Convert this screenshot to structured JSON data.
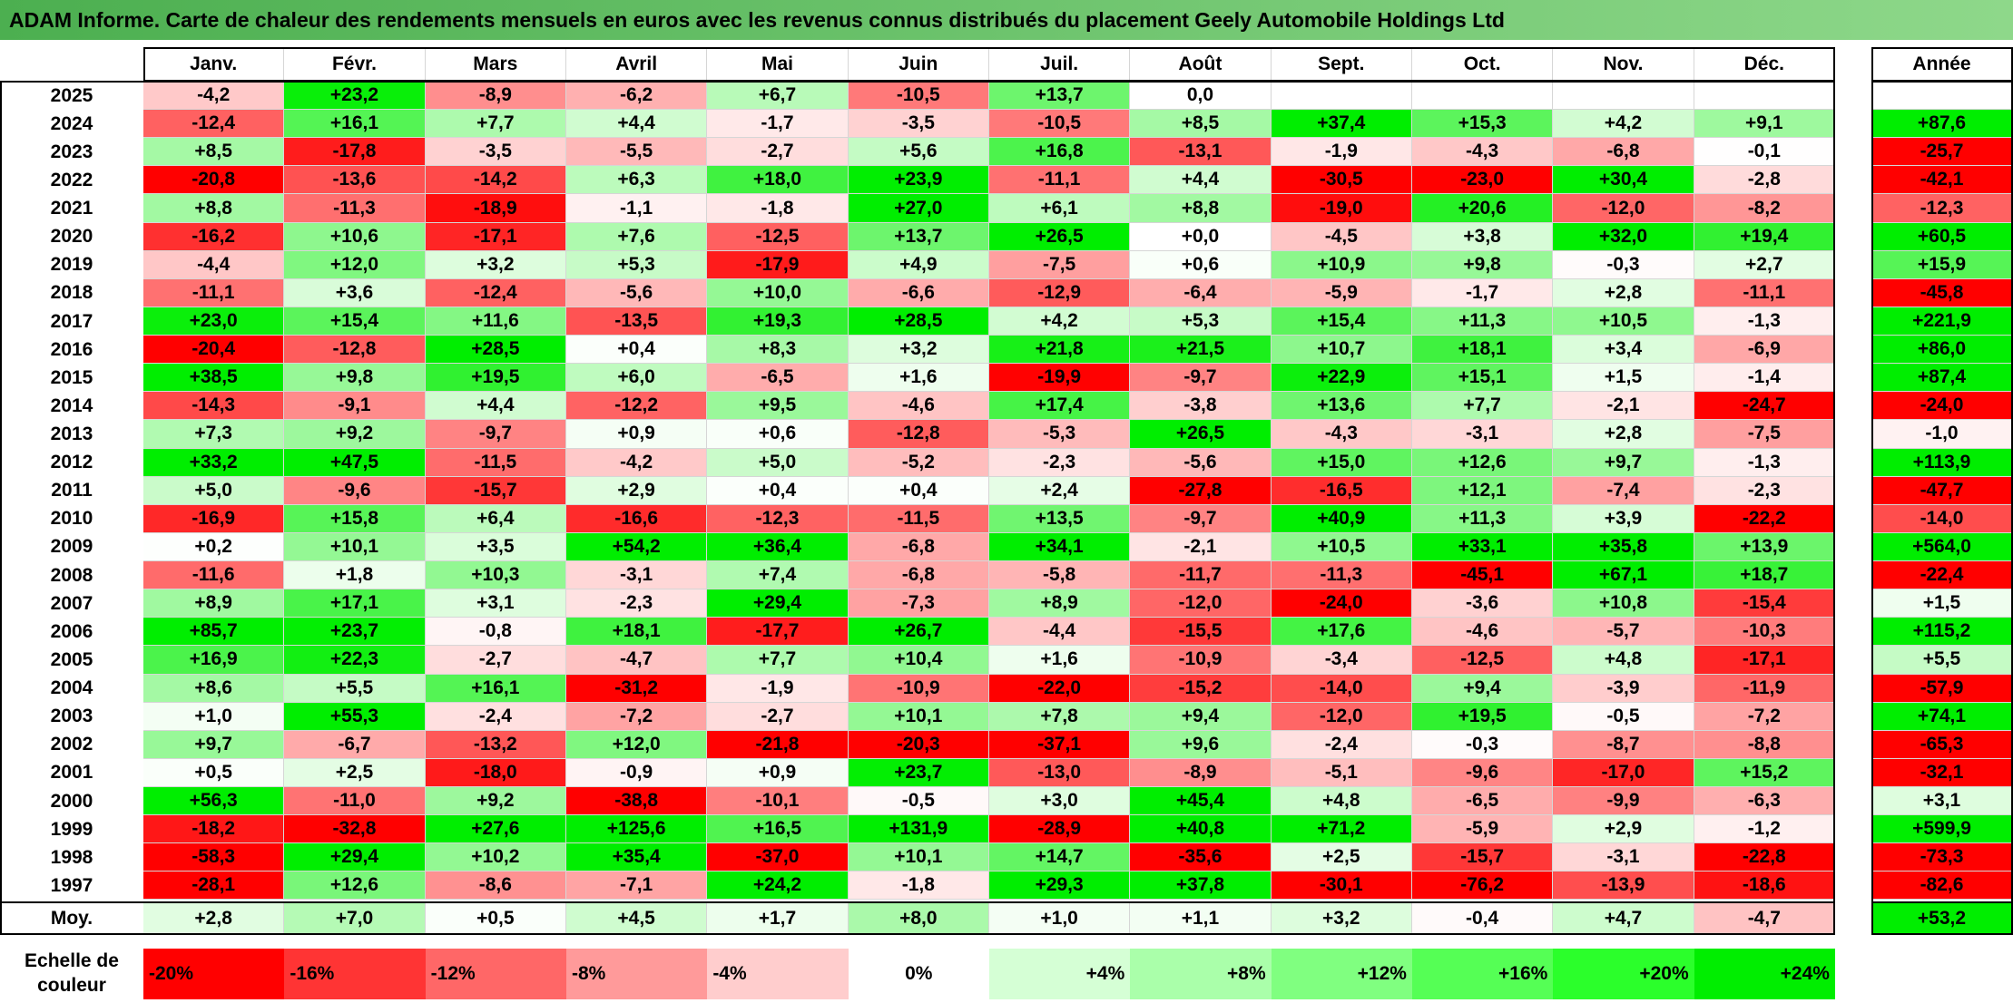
{
  "title": "ADAM Informe. Carte de chaleur des rendements mensuels en euros avec les revenus connus distribués du placement Geely Automobile Holdings Ltd",
  "chart_data": {
    "type": "heatmap",
    "title": "ADAM Informe. Carte de chaleur des rendements mensuels en euros avec les revenus connus distribués du placement Geely Automobile Holdings Ltd",
    "months": [
      "Janv.",
      "Févr.",
      "Mars",
      "Avril",
      "Mai",
      "Juin",
      "Juil.",
      "Août",
      "Sept.",
      "Oct.",
      "Nov.",
      "Déc."
    ],
    "year_column_label": "Année",
    "rows": [
      {
        "year": "2025",
        "values": [
          "-4,2",
          "+23,2",
          "-8,9",
          "-6,2",
          "+6,7",
          "-10,5",
          "+13,7",
          "0,0",
          "",
          "",
          "",
          ""
        ],
        "annual": ""
      },
      {
        "year": "2024",
        "values": [
          "-12,4",
          "+16,1",
          "+7,7",
          "+4,4",
          "-1,7",
          "-3,5",
          "-10,5",
          "+8,5",
          "+37,4",
          "+15,3",
          "+4,2",
          "+9,1"
        ],
        "annual": "+87,6"
      },
      {
        "year": "2023",
        "values": [
          "+8,5",
          "-17,8",
          "-3,5",
          "-5,5",
          "-2,7",
          "+5,6",
          "+16,8",
          "-13,1",
          "-1,9",
          "-4,3",
          "-6,8",
          "-0,1"
        ],
        "annual": "-25,7"
      },
      {
        "year": "2022",
        "values": [
          "-20,8",
          "-13,6",
          "-14,2",
          "+6,3",
          "+18,0",
          "+23,9",
          "-11,1",
          "+4,4",
          "-30,5",
          "-23,0",
          "+30,4",
          "-2,8"
        ],
        "annual": "-42,1"
      },
      {
        "year": "2021",
        "values": [
          "+8,8",
          "-11,3",
          "-18,9",
          "-1,1",
          "-1,8",
          "+27,0",
          "+6,1",
          "+8,8",
          "-19,0",
          "+20,6",
          "-12,0",
          "-8,2"
        ],
        "annual": "-12,3"
      },
      {
        "year": "2020",
        "values": [
          "-16,2",
          "+10,6",
          "-17,1",
          "+7,6",
          "-12,5",
          "+13,7",
          "+26,5",
          "+0,0",
          "-4,5",
          "+3,8",
          "+32,0",
          "+19,4"
        ],
        "annual": "+60,5"
      },
      {
        "year": "2019",
        "values": [
          "-4,4",
          "+12,0",
          "+3,2",
          "+5,3",
          "-17,9",
          "+4,9",
          "-7,5",
          "+0,6",
          "+10,9",
          "+9,8",
          "-0,3",
          "+2,7"
        ],
        "annual": "+15,9"
      },
      {
        "year": "2018",
        "values": [
          "-11,1",
          "+3,6",
          "-12,4",
          "-5,6",
          "+10,0",
          "-6,6",
          "-12,9",
          "-6,4",
          "-5,9",
          "-1,7",
          "+2,8",
          "-11,1"
        ],
        "annual": "-45,8"
      },
      {
        "year": "2017",
        "values": [
          "+23,0",
          "+15,4",
          "+11,6",
          "-13,5",
          "+19,3",
          "+28,5",
          "+4,2",
          "+5,3",
          "+15,4",
          "+11,3",
          "+10,5",
          "-1,3"
        ],
        "annual": "+221,9"
      },
      {
        "year": "2016",
        "values": [
          "-20,4",
          "-12,8",
          "+28,5",
          "+0,4",
          "+8,3",
          "+3,2",
          "+21,8",
          "+21,5",
          "+10,7",
          "+18,1",
          "+3,4",
          "-6,9"
        ],
        "annual": "+86,0"
      },
      {
        "year": "2015",
        "values": [
          "+38,5",
          "+9,8",
          "+19,5",
          "+6,0",
          "-6,5",
          "+1,6",
          "-19,9",
          "-9,7",
          "+22,9",
          "+15,1",
          "+1,5",
          "-1,4"
        ],
        "annual": "+87,4"
      },
      {
        "year": "2014",
        "values": [
          "-14,3",
          "-9,1",
          "+4,4",
          "-12,2",
          "+9,5",
          "-4,6",
          "+17,4",
          "-3,8",
          "+13,6",
          "+7,7",
          "-2,1",
          "-24,7"
        ],
        "annual": "-24,0"
      },
      {
        "year": "2013",
        "values": [
          "+7,3",
          "+9,2",
          "-9,7",
          "+0,9",
          "+0,6",
          "-12,8",
          "-5,3",
          "+26,5",
          "-4,3",
          "-3,1",
          "+2,8",
          "-7,5"
        ],
        "annual": "-1,0"
      },
      {
        "year": "2012",
        "values": [
          "+33,2",
          "+47,5",
          "-11,5",
          "-4,2",
          "+5,0",
          "-5,2",
          "-2,3",
          "-5,6",
          "+15,0",
          "+12,6",
          "+9,7",
          "-1,3"
        ],
        "annual": "+113,9"
      },
      {
        "year": "2011",
        "values": [
          "+5,0",
          "-9,6",
          "-15,7",
          "+2,9",
          "+0,4",
          "+0,4",
          "+2,4",
          "-27,8",
          "-16,5",
          "+12,1",
          "-7,4",
          "-2,3"
        ],
        "annual": "-47,7"
      },
      {
        "year": "2010",
        "values": [
          "-16,9",
          "+15,8",
          "+6,4",
          "-16,6",
          "-12,3",
          "-11,5",
          "+13,5",
          "-9,7",
          "+40,9",
          "+11,3",
          "+3,9",
          "-22,2"
        ],
        "annual": "-14,0"
      },
      {
        "year": "2009",
        "values": [
          "+0,2",
          "+10,1",
          "+3,5",
          "+54,2",
          "+36,4",
          "-6,8",
          "+34,1",
          "-2,1",
          "+10,5",
          "+33,1",
          "+35,8",
          "+13,9"
        ],
        "annual": "+564,0"
      },
      {
        "year": "2008",
        "values": [
          "-11,6",
          "+1,8",
          "+10,3",
          "-3,1",
          "+7,4",
          "-6,8",
          "-5,8",
          "-11,7",
          "-11,3",
          "-45,1",
          "+67,1",
          "+18,7"
        ],
        "annual": "-22,4"
      },
      {
        "year": "2007",
        "values": [
          "+8,9",
          "+17,1",
          "+3,1",
          "-2,3",
          "+29,4",
          "-7,3",
          "+8,9",
          "-12,0",
          "-24,0",
          "-3,6",
          "+10,8",
          "-15,4"
        ],
        "annual": "+1,5"
      },
      {
        "year": "2006",
        "values": [
          "+85,7",
          "+23,7",
          "-0,8",
          "+18,1",
          "-17,7",
          "+26,7",
          "-4,4",
          "-15,5",
          "+17,6",
          "-4,6",
          "-5,7",
          "-10,3"
        ],
        "annual": "+115,2"
      },
      {
        "year": "2005",
        "values": [
          "+16,9",
          "+22,3",
          "-2,7",
          "-4,7",
          "+7,7",
          "+10,4",
          "+1,6",
          "-10,9",
          "-3,4",
          "-12,5",
          "+4,8",
          "-17,1"
        ],
        "annual": "+5,5"
      },
      {
        "year": "2004",
        "values": [
          "+8,6",
          "+5,5",
          "+16,1",
          "-31,2",
          "-1,9",
          "-10,9",
          "-22,0",
          "-15,2",
          "-14,0",
          "+9,4",
          "-3,9",
          "-11,9"
        ],
        "annual": "-57,9"
      },
      {
        "year": "2003",
        "values": [
          "+1,0",
          "+55,3",
          "-2,4",
          "-7,2",
          "-2,7",
          "+10,1",
          "+7,8",
          "+9,4",
          "-12,0",
          "+19,5",
          "-0,5",
          "-7,2"
        ],
        "annual": "+74,1"
      },
      {
        "year": "2002",
        "values": [
          "+9,7",
          "-6,7",
          "-13,2",
          "+12,0",
          "-21,8",
          "-20,3",
          "-37,1",
          "+9,6",
          "-2,4",
          "-0,3",
          "-8,7",
          "-8,8"
        ],
        "annual": "-65,3"
      },
      {
        "year": "2001",
        "values": [
          "+0,5",
          "+2,5",
          "-18,0",
          "-0,9",
          "+0,9",
          "+23,7",
          "-13,0",
          "-8,9",
          "-5,1",
          "-9,6",
          "-17,0",
          "+15,2"
        ],
        "annual": "-32,1"
      },
      {
        "year": "2000",
        "values": [
          "+56,3",
          "-11,0",
          "+9,2",
          "-38,8",
          "-10,1",
          "-0,5",
          "+3,0",
          "+45,4",
          "+4,8",
          "-6,5",
          "-9,9",
          "-6,3"
        ],
        "annual": "+3,1"
      },
      {
        "year": "1999",
        "values": [
          "-18,2",
          "-32,8",
          "+27,6",
          "+125,6",
          "+16,5",
          "+131,9",
          "-28,9",
          "+40,8",
          "+71,2",
          "-5,9",
          "+2,9",
          "-1,2"
        ],
        "annual": "+599,9"
      },
      {
        "year": "1998",
        "values": [
          "-58,3",
          "+29,4",
          "+10,2",
          "+35,4",
          "-37,0",
          "+10,1",
          "+14,7",
          "-35,6",
          "+2,5",
          "-15,7",
          "-3,1",
          "-22,8"
        ],
        "annual": "-73,3"
      },
      {
        "year": "1997",
        "values": [
          "-28,1",
          "+12,6",
          "-8,6",
          "-7,1",
          "+24,2",
          "-1,8",
          "+29,3",
          "+37,8",
          "-30,1",
          "-76,2",
          "-13,9",
          "-18,6"
        ],
        "annual": "-82,6"
      }
    ],
    "average_row": {
      "label": "Moy.",
      "values": [
        "+2,8",
        "+7,0",
        "+0,5",
        "+4,5",
        "+1,7",
        "+8,0",
        "+1,0",
        "+1,1",
        "+3,2",
        "-0,4",
        "+4,7",
        "-4,7"
      ],
      "annual": "+53,2"
    },
    "color_scale": {
      "label": "Echelle de couleur",
      "steps": [
        {
          "label": "-20%",
          "value": -20,
          "color": "#ff0000"
        },
        {
          "label": "-16%",
          "value": -16,
          "color": "#ff3434"
        },
        {
          "label": "-12%",
          "value": -12,
          "color": "#ff6767"
        },
        {
          "label": "-8%",
          "value": -8,
          "color": "#ff9a9a"
        },
        {
          "label": "-4%",
          "value": -4,
          "color": "#ffcdcd"
        },
        {
          "label": "0%",
          "value": 0,
          "color": "#ffffff"
        },
        {
          "label": "+4%",
          "value": 4,
          "color": "#d5ffd5"
        },
        {
          "label": "+8%",
          "value": 8,
          "color": "#aaffaa"
        },
        {
          "label": "+12%",
          "value": 12,
          "color": "#80ff80"
        },
        {
          "label": "+16%",
          "value": 16,
          "color": "#55ff55"
        },
        {
          "label": "+20%",
          "value": 20,
          "color": "#2bff2b"
        },
        {
          "label": "+24%",
          "value": 24,
          "color": "#00ee00"
        }
      ]
    }
  }
}
